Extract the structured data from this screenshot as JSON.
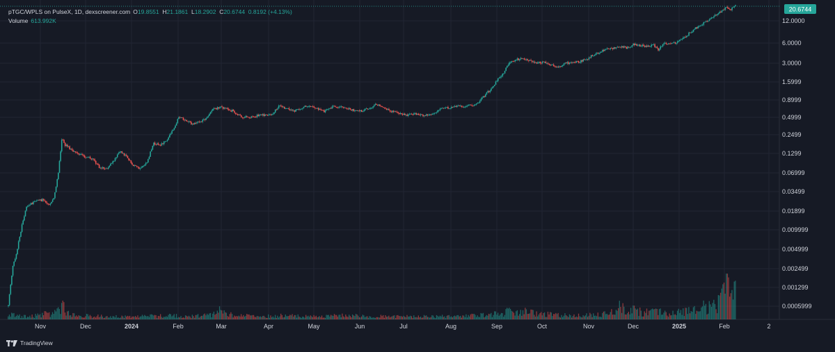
{
  "legend": {
    "symbol": "pTGC/WPLS on PulseX, 1D, dexscreener.com",
    "open_label": "O",
    "open_value": "19.8551",
    "high_label": "H",
    "high_value": "21.1861",
    "low_label": "L",
    "low_value": "18.2902",
    "close_label": "C",
    "close_value": "20.6744",
    "change_value": "0.8192 (+4.13%)",
    "volume_label": "Volume",
    "volume_value": "613.992K"
  },
  "price_badge": "20.6744",
  "brand": "TradingView",
  "colors": {
    "background": "#161a25",
    "grid": "#212533",
    "text": "#d1d4dc",
    "up": "#26a69a",
    "down": "#ef5350",
    "badge": "#26a69a"
  },
  "chart_data": {
    "type": "candlestick",
    "title": "pTGC/WPLS on PulseX, 1D, dexscreener.com",
    "yscale": "log",
    "y_ticks": [
      "12.0000",
      "6.0000",
      "3.0000",
      "1.5999",
      "0.8999",
      "0.4999",
      "0.2499",
      "0.1299",
      "0.06999",
      "0.03499",
      "0.01899",
      "0.009999",
      "0.004999",
      "0.002499",
      "0.001299",
      "0.0005999"
    ],
    "x_ticks": [
      "Nov",
      "Dec",
      "2024",
      "Feb",
      "Mar",
      "Apr",
      "May",
      "Jun",
      "Jul",
      "Aug",
      "Sep",
      "Oct",
      "Nov",
      "Dec",
      "2025",
      "Feb",
      "2"
    ],
    "bold_ticks": [
      "2024",
      "2025"
    ],
    "last_close": 20.6744,
    "price_path": [
      [
        0,
        0.0005999
      ],
      [
        2,
        0.0013
      ],
      [
        4,
        0.0025
      ],
      [
        6,
        0.003
      ],
      [
        8,
        0.0045
      ],
      [
        12,
        0.01
      ],
      [
        16,
        0.019
      ],
      [
        22,
        0.022
      ],
      [
        30,
        0.024
      ],
      [
        36,
        0.02
      ],
      [
        40,
        0.025
      ],
      [
        44,
        0.06
      ],
      [
        47,
        0.2
      ],
      [
        50,
        0.16
      ],
      [
        58,
        0.13
      ],
      [
        66,
        0.11
      ],
      [
        74,
        0.1
      ],
      [
        80,
        0.075
      ],
      [
        86,
        0.07
      ],
      [
        92,
        0.09
      ],
      [
        98,
        0.13
      ],
      [
        104,
        0.11
      ],
      [
        110,
        0.08
      ],
      [
        116,
        0.07
      ],
      [
        122,
        0.09
      ],
      [
        128,
        0.17
      ],
      [
        134,
        0.16
      ],
      [
        140,
        0.2
      ],
      [
        146,
        0.3
      ],
      [
        150,
        0.42
      ],
      [
        156,
        0.38
      ],
      [
        162,
        0.33
      ],
      [
        168,
        0.36
      ],
      [
        174,
        0.4
      ],
      [
        180,
        0.55
      ],
      [
        186,
        0.6
      ],
      [
        192,
        0.56
      ],
      [
        198,
        0.52
      ],
      [
        206,
        0.42
      ],
      [
        214,
        0.43
      ],
      [
        222,
        0.45
      ],
      [
        232,
        0.47
      ],
      [
        238,
        0.62
      ],
      [
        244,
        0.58
      ],
      [
        252,
        0.53
      ],
      [
        262,
        0.62
      ],
      [
        270,
        0.58
      ],
      [
        278,
        0.52
      ],
      [
        286,
        0.62
      ],
      [
        294,
        0.6
      ],
      [
        302,
        0.55
      ],
      [
        310,
        0.52
      ],
      [
        318,
        0.58
      ],
      [
        324,
        0.67
      ],
      [
        330,
        0.58
      ],
      [
        340,
        0.5
      ],
      [
        350,
        0.45
      ],
      [
        358,
        0.48
      ],
      [
        366,
        0.45
      ],
      [
        374,
        0.48
      ],
      [
        382,
        0.57
      ],
      [
        392,
        0.6
      ],
      [
        402,
        0.62
      ],
      [
        412,
        0.66
      ],
      [
        418,
        0.85
      ],
      [
        424,
        1.1
      ],
      [
        430,
        1.5
      ],
      [
        436,
        2.0
      ],
      [
        440,
        2.7
      ],
      [
        446,
        3.1
      ],
      [
        454,
        3.2
      ],
      [
        460,
        3.0
      ],
      [
        466,
        2.8
      ],
      [
        472,
        2.9
      ],
      [
        478,
        2.6
      ],
      [
        484,
        2.4
      ],
      [
        490,
        2.7
      ],
      [
        496,
        2.85
      ],
      [
        502,
        2.9
      ],
      [
        508,
        3.1
      ],
      [
        514,
        3.6
      ],
      [
        520,
        4.0
      ],
      [
        526,
        4.5
      ],
      [
        532,
        4.6
      ],
      [
        538,
        5.0
      ],
      [
        544,
        4.7
      ],
      [
        550,
        5.3
      ],
      [
        556,
        5.1
      ],
      [
        562,
        4.9
      ],
      [
        568,
        5.2
      ],
      [
        572,
        4.4
      ],
      [
        576,
        5.4
      ],
      [
        582,
        5.4
      ],
      [
        588,
        5.6
      ],
      [
        594,
        6.5
      ],
      [
        600,
        8.0
      ],
      [
        606,
        9.5
      ],
      [
        612,
        11.0
      ],
      [
        618,
        13.0
      ],
      [
        624,
        15.0
      ],
      [
        628,
        17.0
      ],
      [
        632,
        19.5
      ],
      [
        636,
        18.0
      ],
      [
        640,
        20.6744
      ]
    ],
    "volume_path": [
      [
        0,
        0.05
      ],
      [
        4,
        0.06
      ],
      [
        8,
        0.05
      ],
      [
        12,
        0.04
      ],
      [
        16,
        0.05
      ],
      [
        20,
        0.04
      ],
      [
        24,
        0.05
      ],
      [
        28,
        0.05
      ],
      [
        32,
        0.08
      ],
      [
        36,
        0.06
      ],
      [
        40,
        0.08
      ],
      [
        44,
        0.14
      ],
      [
        48,
        0.17
      ],
      [
        52,
        0.1
      ],
      [
        56,
        0.08
      ],
      [
        64,
        0.05
      ],
      [
        80,
        0.04
      ],
      [
        100,
        0.04
      ],
      [
        120,
        0.04
      ],
      [
        140,
        0.05
      ],
      [
        160,
        0.04
      ],
      [
        180,
        0.06
      ],
      [
        186,
        0.11
      ],
      [
        200,
        0.06
      ],
      [
        220,
        0.04
      ],
      [
        240,
        0.05
      ],
      [
        260,
        0.04
      ],
      [
        280,
        0.05
      ],
      [
        300,
        0.05
      ],
      [
        320,
        0.04
      ],
      [
        340,
        0.04
      ],
      [
        360,
        0.04
      ],
      [
        380,
        0.04
      ],
      [
        400,
        0.04
      ],
      [
        420,
        0.06
      ],
      [
        440,
        0.1
      ],
      [
        450,
        0.11
      ],
      [
        460,
        0.09
      ],
      [
        470,
        0.07
      ],
      [
        480,
        0.06
      ],
      [
        500,
        0.05
      ],
      [
        520,
        0.06
      ],
      [
        530,
        0.1
      ],
      [
        538,
        0.16
      ],
      [
        544,
        0.14
      ],
      [
        552,
        0.12
      ],
      [
        560,
        0.09
      ],
      [
        570,
        0.13
      ],
      [
        576,
        0.08
      ],
      [
        582,
        0.09
      ],
      [
        590,
        0.1
      ],
      [
        600,
        0.12
      ],
      [
        612,
        0.18
      ],
      [
        620,
        0.15
      ],
      [
        626,
        0.24
      ],
      [
        630,
        0.33
      ],
      [
        632,
        0.5
      ],
      [
        634,
        0.36
      ],
      [
        636,
        0.3
      ],
      [
        640,
        0.34
      ]
    ]
  }
}
